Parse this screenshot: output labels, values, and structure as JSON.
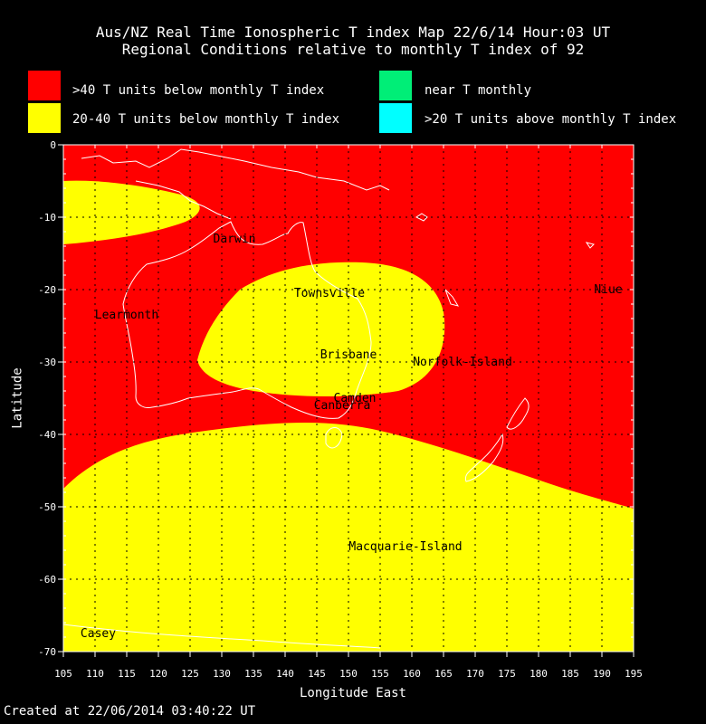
{
  "title_line1": "Aus/NZ Real Time Ionospheric T index Map 22/6/14 Hour:03 UT",
  "title_line2": "Regional Conditions relative to monthly T index of 92",
  "legend": [
    {
      "label": ">40 T units below monthly T index",
      "color": "#ff0000"
    },
    {
      "label": "20-40 T units below monthly T index",
      "color": "#ffff00"
    },
    {
      "label": "near T monthly",
      "color": "#00ee77"
    },
    {
      "label": ">20 T units above monthly T index",
      "color": "#00ffff"
    }
  ],
  "axes": {
    "xlabel": "Longitude East",
    "ylabel": "Latitude",
    "x_ticks": [
      "105",
      "110",
      "115",
      "120",
      "125",
      "130",
      "135",
      "140",
      "145",
      "150",
      "155",
      "160",
      "165",
      "170",
      "175",
      "180",
      "185",
      "190",
      "195"
    ],
    "y_ticks": [
      "0",
      "-10",
      "-20",
      "-30",
      "-40",
      "-50",
      "-60",
      "-70"
    ],
    "xlim": [
      105,
      195
    ],
    "ylim": [
      -70,
      0
    ]
  },
  "places": [
    {
      "name": "Darwin",
      "lon": 132,
      "lat": -13
    },
    {
      "name": "Townsville",
      "lon": 147,
      "lat": -20.5
    },
    {
      "name": "Niue",
      "lon": 191,
      "lat": -20
    },
    {
      "name": "Learmonth",
      "lon": 115,
      "lat": -23.5
    },
    {
      "name": "Brisbane",
      "lon": 150,
      "lat": -29
    },
    {
      "name": "Norfolk-Island",
      "lon": 168,
      "lat": -30
    },
    {
      "name": "Camden",
      "lon": 151,
      "lat": -35
    },
    {
      "name": "Canberra",
      "lon": 149,
      "lat": -36
    },
    {
      "name": "Macquarie-Island",
      "lon": 159,
      "lat": -55.5
    },
    {
      "name": "Casey",
      "lon": 110.5,
      "lat": -67.5
    }
  ],
  "footer": "Created at 22/06/2014 03:40:22 UT",
  "colors": {
    "red": "#ff0000",
    "yellow": "#ffff00",
    "coast": "#ffffff"
  }
}
